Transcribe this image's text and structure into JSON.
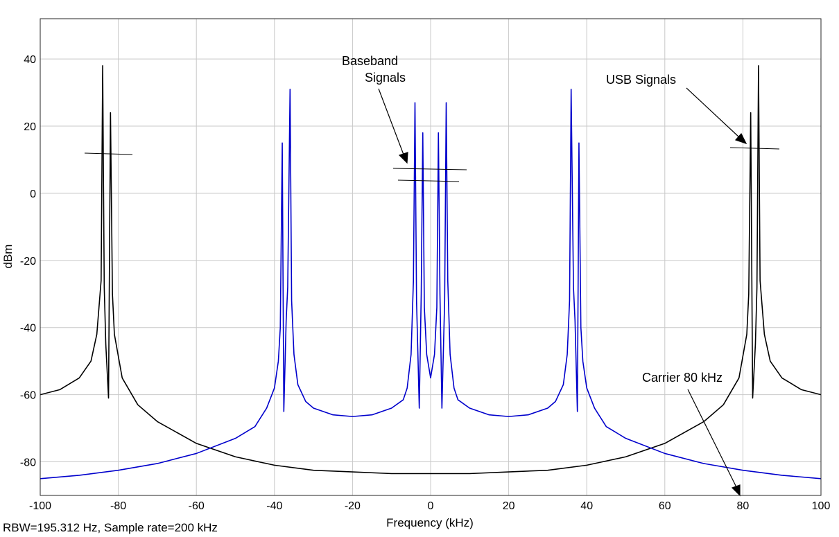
{
  "chart_data": {
    "type": "line",
    "title": "",
    "xlabel": "Frequency (kHz)",
    "ylabel": "dBm",
    "xlim": [
      -100,
      100
    ],
    "ylim": [
      -90,
      52
    ],
    "xticks": [
      -100,
      -80,
      -60,
      -40,
      -20,
      0,
      20,
      40,
      60,
      80,
      100
    ],
    "yticks": [
      -80,
      -60,
      -40,
      -20,
      0,
      20,
      40
    ],
    "grid": true,
    "series": [
      {
        "color": "#000000",
        "x": [
          -100,
          -95,
          -90,
          -87,
          -85.5,
          -84.4,
          -84,
          -83.6,
          -83.2,
          -82.5,
          -82,
          -81.5,
          -81,
          -79,
          -75,
          -70,
          -60,
          -50,
          -40,
          -30,
          -20,
          -10,
          0,
          10,
          20,
          30,
          40,
          50,
          60,
          70,
          75,
          79,
          81,
          81.5,
          82,
          82.5,
          83.2,
          83.6,
          84,
          84.4,
          85.5,
          87,
          90,
          95,
          100
        ],
        "y": [
          -60,
          -58.5,
          -55,
          -50,
          -42,
          -26,
          38,
          -28,
          -45,
          -61,
          24,
          -30,
          -42,
          -55,
          -63,
          -68,
          -74.5,
          -78.5,
          -81,
          -82.5,
          -83,
          -83.5,
          -83.5,
          -83.5,
          -83,
          -82.5,
          -81,
          -78.5,
          -74.5,
          -68,
          -63,
          -55,
          -42,
          -30,
          24,
          -61,
          -45,
          -28,
          38,
          -26,
          -42,
          -50,
          -55,
          -58.5,
          -60
        ]
      },
      {
        "color": "#0000cc",
        "x": [
          -100,
          -90,
          -80,
          -70,
          -60,
          -50,
          -45,
          -42,
          -40,
          -39,
          -38.5,
          -38,
          -37.6,
          -37,
          -36.6,
          -36,
          -35.6,
          -35,
          -34,
          -32,
          -30,
          -25,
          -20,
          -15,
          -10,
          -7,
          -6,
          -5,
          -4.4,
          -4,
          -3.6,
          -2.9,
          -2.4,
          -2,
          -1.6,
          -1,
          0,
          1,
          1.6,
          2,
          2.4,
          2.9,
          3.6,
          4,
          4.4,
          5,
          6,
          7,
          10,
          15,
          20,
          25,
          30,
          32,
          34,
          35,
          35.6,
          36,
          36.6,
          37,
          37.6,
          38,
          38.5,
          39,
          40,
          42,
          45,
          50,
          60,
          70,
          80,
          90,
          100
        ],
        "y": [
          -85,
          -84,
          -82.5,
          -80.5,
          -77.5,
          -73,
          -69.5,
          -64,
          -58,
          -50,
          -40,
          15,
          -65,
          -38,
          -28,
          31,
          -32,
          -48,
          -57,
          -62,
          -64,
          -66,
          -66.5,
          -66,
          -64,
          -61.5,
          -58,
          -48,
          -26,
          27,
          -32,
          -64,
          -30,
          18,
          -34,
          -48,
          -55,
          -48,
          -34,
          18,
          -30,
          -64,
          -32,
          27,
          -26,
          -48,
          -58,
          -61.5,
          -64,
          -66,
          -66.5,
          -66,
          -64,
          -62,
          -57,
          -48,
          -32,
          31,
          -28,
          -38,
          -65,
          15,
          -40,
          -50,
          -58,
          -64,
          -69.5,
          -73,
          -77.5,
          -80.5,
          -82.5,
          -84,
          -85
        ]
      }
    ],
    "annotations": [
      {
        "lines": [
          "Baseband",
          "Signals"
        ]
      },
      {
        "lines": [
          "USB Signals"
        ]
      },
      {
        "lines": [
          "Carrier 80 kHz"
        ]
      }
    ]
  },
  "footnote": "RBW=195.312 Hz, Sample rate=200 kHz"
}
